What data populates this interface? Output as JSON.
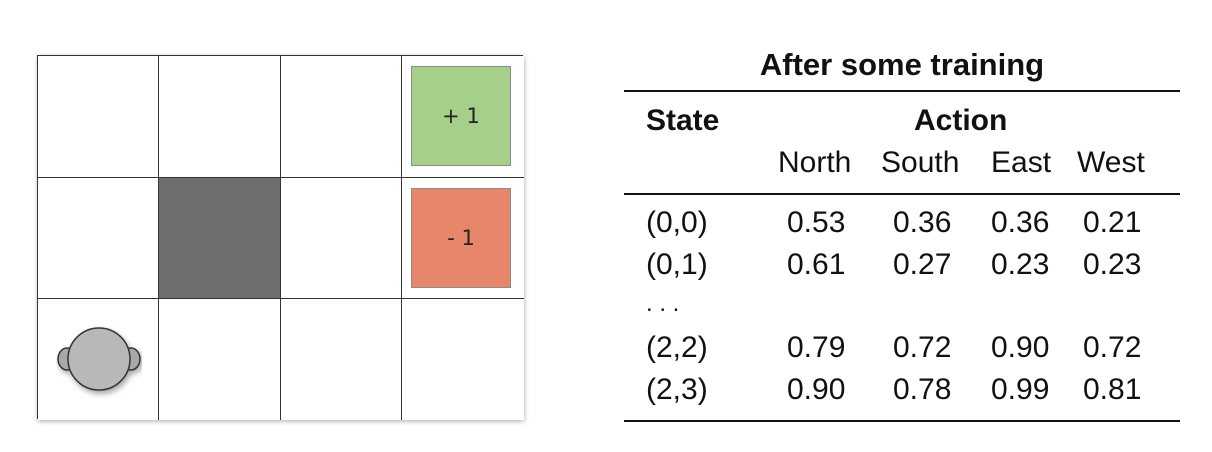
{
  "gridworld": {
    "rows": 3,
    "cols": 4,
    "wall": [
      1,
      1
    ],
    "agent": [
      2,
      0
    ],
    "agent_icon": "robot-icon",
    "positive_terminal": {
      "cell": [
        0,
        3
      ],
      "label": "+ 1",
      "color": "#a6d08a"
    },
    "negative_terminal": {
      "cell": [
        1,
        3
      ],
      "label": "- 1",
      "color": "#e8866c"
    },
    "wall_color": "#6e6e6e"
  },
  "qtable": {
    "title": "After some training",
    "state_header": "State",
    "action_header": "Action",
    "actions": [
      "North",
      "South",
      "East",
      "West"
    ],
    "rows": [
      {
        "state": "(0,0)",
        "values": [
          "0.53",
          "0.36",
          "0.36",
          "0.21"
        ]
      },
      {
        "state": "(0,1)",
        "values": [
          "0.61",
          "0.27",
          "0.23",
          "0.23"
        ]
      },
      {
        "state": ". . .",
        "values": []
      },
      {
        "state": "(2,2)",
        "values": [
          "0.79",
          "0.72",
          "0.90",
          "0.72"
        ]
      },
      {
        "state": "(2,3)",
        "values": [
          "0.90",
          "0.78",
          "0.99",
          "0.81"
        ]
      }
    ]
  }
}
